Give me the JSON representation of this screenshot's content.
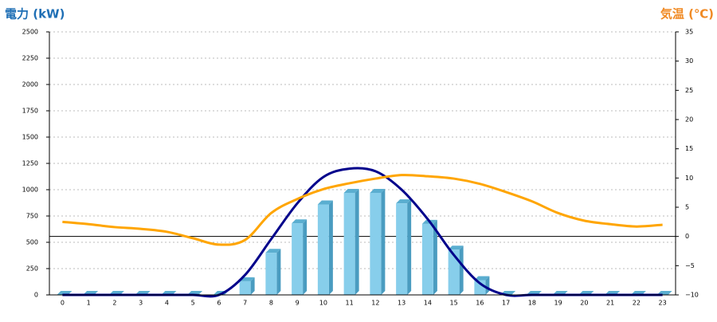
{
  "chart_data": {
    "type": "bar",
    "y_title": "電力 (kW)",
    "y2_title": "気温 (℃)",
    "categories": [
      "0",
      "1",
      "2",
      "3",
      "4",
      "5",
      "6",
      "7",
      "8",
      "9",
      "10",
      "11",
      "12",
      "13",
      "14",
      "15",
      "16",
      "17",
      "18",
      "19",
      "20",
      "21",
      "22",
      "23"
    ],
    "series": [
      {
        "type": "bar",
        "color": "#87ceeb",
        "values": [
          0,
          0,
          0,
          0,
          0,
          0,
          0,
          130,
          400,
          680,
          860,
          970,
          970,
          870,
          675,
          430,
          140,
          0,
          0,
          0,
          0,
          0,
          0,
          0
        ]
      },
      {
        "type": "line",
        "color": "#00008b",
        "values": [
          0,
          0,
          0,
          0,
          0,
          0,
          0,
          190,
          530,
          870,
          1120,
          1200,
          1175,
          1000,
          720,
          380,
          110,
          0,
          0,
          0,
          0,
          0,
          0,
          0
        ]
      },
      {
        "type": "line",
        "axis": "y2",
        "color": "#ffa500",
        "values": [
          2.5,
          2.1,
          1.6,
          1.3,
          0.8,
          -0.3,
          -1.4,
          -0.6,
          4,
          6.4,
          8.1,
          9.1,
          9.9,
          10.5,
          10.3,
          9.9,
          9,
          7.6,
          6,
          4,
          2.7,
          2.1,
          1.7,
          2
        ]
      }
    ],
    "ylim": [
      0,
      2500
    ],
    "yticks": [
      0,
      250,
      500,
      750,
      1000,
      1250,
      1500,
      1750,
      2000,
      2250,
      2500
    ],
    "y2lim": [
      -10,
      35
    ],
    "y2ticks": [
      {
        "value": -10,
        "label": "−10"
      },
      {
        "value": -5,
        "label": "−5"
      },
      0,
      5,
      10,
      15,
      20,
      25,
      30,
      35
    ],
    "grid": true,
    "y_title_color": "#1f6fb5",
    "y2_title_color": "#f08a24"
  }
}
